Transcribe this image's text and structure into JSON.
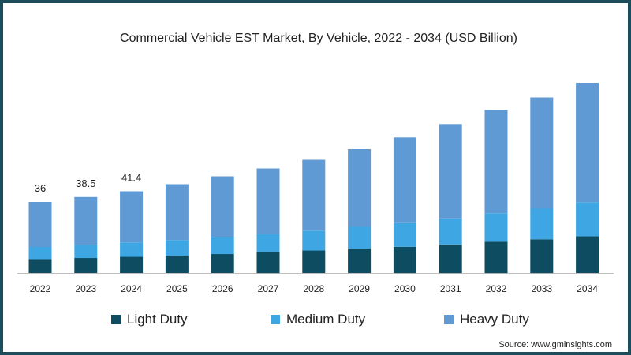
{
  "chart_data": {
    "type": "bar",
    "stacked": true,
    "title": "Commercial Vehicle EST Market, By Vehicle, 2022 - 2034 (USD Billion)",
    "categories": [
      "2022",
      "2023",
      "2024",
      "2025",
      "2026",
      "2027",
      "2028",
      "2029",
      "2030",
      "2031",
      "2032",
      "2033",
      "2034"
    ],
    "series": [
      {
        "name": "Light Duty",
        "color": "#0d4c61",
        "values": [
          7.0,
          7.6,
          8.2,
          8.8,
          9.6,
          10.5,
          11.4,
          12.4,
          13.3,
          14.5,
          15.9,
          17.1,
          18.6
        ]
      },
      {
        "name": "Medium Duty",
        "color": "#3ea7e3",
        "values": [
          6.2,
          6.7,
          7.3,
          7.9,
          8.7,
          9.4,
          10.1,
          11.0,
          12.0,
          13.2,
          14.4,
          15.5,
          17.3
        ]
      },
      {
        "name": "Heavy Duty",
        "color": "#5f9ad5",
        "values": [
          22.8,
          24.2,
          25.9,
          28.3,
          30.7,
          33.1,
          35.9,
          39.4,
          43.4,
          47.8,
          52.4,
          56.4,
          60.5
        ]
      }
    ],
    "data_labels": [
      {
        "category": "2022",
        "text": "36"
      },
      {
        "category": "2023",
        "text": "38.5"
      },
      {
        "category": "2024",
        "text": "41.4"
      }
    ],
    "ylim": [
      0,
      100
    ],
    "xlabel": "",
    "ylabel": "",
    "legend": "bottom",
    "grid": false
  },
  "source": "Source: www.gminsights.com"
}
